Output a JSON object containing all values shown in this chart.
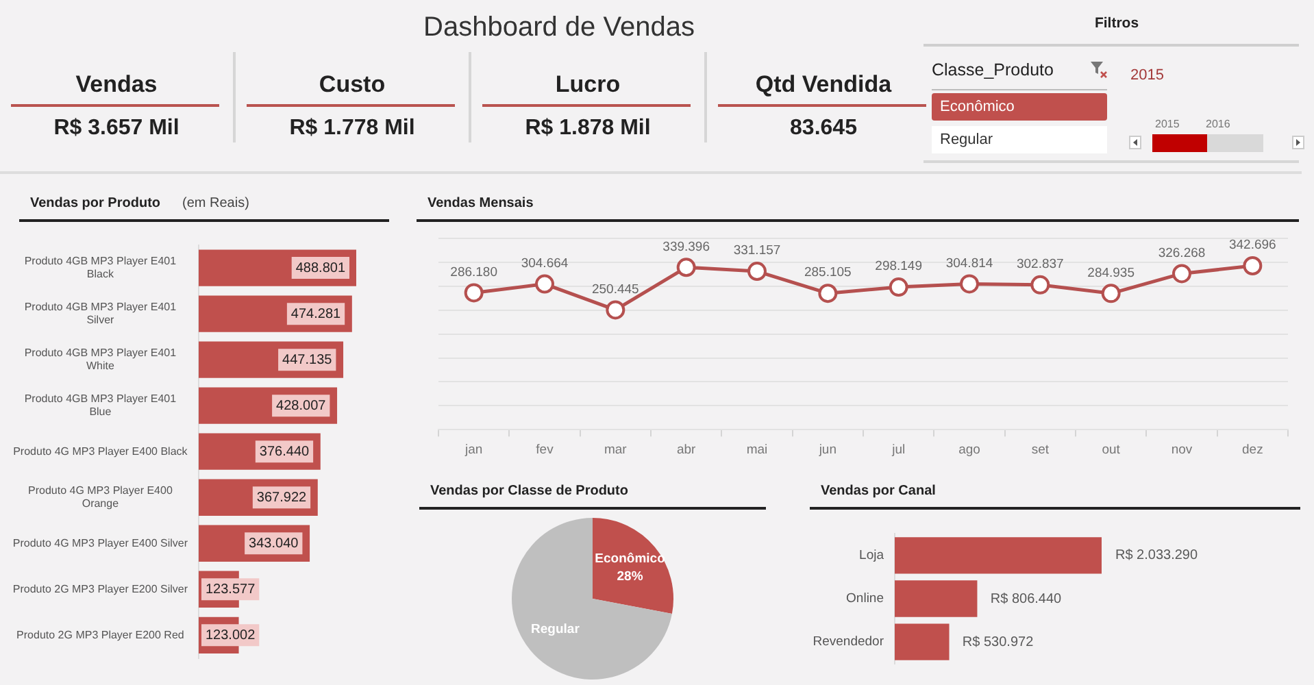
{
  "chart_data": [
    {
      "type": "other",
      "title": "Dashboard de Vendas",
      "annotations": [
        "Vendas",
        "R$ 3.657 Mil",
        "Custo",
        "R$ 1.778 Mil",
        "Lucro",
        "R$ 1.878 Mil",
        "Qtd Vendida",
        "83.645"
      ]
    },
    {
      "type": "other",
      "title": "Filtros",
      "annotations": [
        "Classe_Produto",
        "Econômico",
        "Regular",
        "2015",
        "2015",
        "2016"
      ]
    },
    {
      "type": "bar",
      "orientation": "horizontal",
      "title": "Vendas por Produto",
      "subtitle": "(em Reais)",
      "categories": [
        "Produto 4GB MP3 Player E401 Black",
        "Produto 4GB MP3 Player E401 Silver",
        "Produto 4GB MP3 Player E401 White",
        "Produto 4GB MP3 Player E401 Blue",
        "Produto 4G MP3 Player E400 Black",
        "Produto 4G MP3 Player E400 Orange",
        "Produto 4G MP3 Player E400 Silver",
        "Produto 2G MP3 Player E200 Silver",
        "Produto 2G MP3 Player E200 Red"
      ],
      "values": [
        488801,
        474281,
        447135,
        428007,
        376440,
        367922,
        343040,
        123577,
        123002
      ],
      "color": "#c0504d",
      "value_labels": [
        "488.801",
        "474.281",
        "447.135",
        "428.007",
        "376.440",
        "367.922",
        "343.040",
        "123.577",
        "123.002"
      ],
      "tick_labels": "y"
    },
    {
      "type": "line",
      "title": "Vendas Mensais",
      "categories": [
        "jan",
        "fev",
        "mar",
        "abr",
        "mai",
        "jun",
        "jul",
        "ago",
        "set",
        "out",
        "nov",
        "dez"
      ],
      "values": [
        286180,
        304664,
        250445,
        339396,
        331157,
        285105,
        298149,
        304814,
        302837,
        284935,
        326268,
        342696
      ],
      "color": "#b5504f",
      "value_labels": [
        "286.180",
        "304.664",
        "250.445",
        "339.396",
        "331.157",
        "285.105",
        "298.149",
        "304.814",
        "302.837",
        "284.935",
        "326.268",
        "342.696"
      ],
      "marker": "circle",
      "ylim": [
        0,
        400000
      ],
      "yticks": [
        {
          "value": 0,
          "label": null
        },
        {
          "value": 50000,
          "label": null
        },
        {
          "value": 100000,
          "label": null
        },
        {
          "value": 150000,
          "label": null
        },
        {
          "value": 200000,
          "label": null
        },
        {
          "value": 250000,
          "label": null
        },
        {
          "value": 300000,
          "label": null
        },
        {
          "value": 350000,
          "label": null
        },
        {
          "value": 400000,
          "label": null
        }
      ],
      "grid": "y",
      "tick_labels": "x"
    },
    {
      "type": "pie",
      "title": "Vendas por Classe de Produto",
      "categories": [
        "Econômico",
        "Regular"
      ],
      "values": [
        28,
        72
      ],
      "colors": [
        "#c0504d",
        "#bfbfbf"
      ],
      "value_labels": [
        "28%",
        null
      ]
    },
    {
      "type": "bar",
      "orientation": "horizontal",
      "title": "Vendas por Canal",
      "categories": [
        "Loja",
        "Online",
        "Revendedor"
      ],
      "values": [
        2033290,
        806440,
        530972
      ],
      "color": "#c0504d",
      "value_labels": [
        "R$ 2.033.290",
        "R$ 806.440",
        "R$ 530.972"
      ],
      "tick_labels": "y"
    }
  ]
}
